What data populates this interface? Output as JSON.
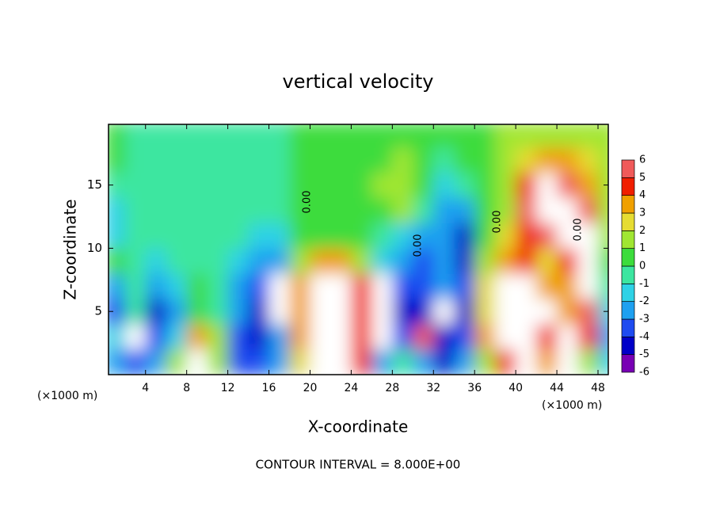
{
  "chart_data": {
    "type": "heatmap",
    "title": "vertical velocity",
    "x_label": "X-coordinate",
    "y_label": "Z-coordinate",
    "x_unit": "(×1000 m)",
    "footer": "CONTOUR INTERVAL = 8.000E+00",
    "contour_labels": [
      "0.00",
      "0.00",
      "0.00",
      "0.00"
    ],
    "x": [
      1,
      3,
      5,
      7,
      9,
      11,
      13,
      15,
      17,
      19,
      21,
      23,
      25,
      27,
      29,
      31,
      33,
      35,
      37,
      39,
      41,
      43,
      45,
      47,
      49
    ],
    "y": [
      1,
      3,
      5,
      7,
      9,
      11,
      13,
      15,
      17,
      19
    ],
    "values": [
      [
        -3,
        -4,
        -3,
        1,
        8,
        1,
        -4,
        -4,
        -3,
        2,
        8,
        9,
        4,
        -3,
        -1,
        -3,
        -5,
        -3,
        1,
        4,
        7,
        3,
        8,
        1,
        -2
      ],
      [
        -2,
        8,
        -4,
        -2,
        3,
        1,
        -4,
        -5,
        -3,
        3,
        9,
        9,
        4,
        8,
        -4,
        5,
        -5,
        -4,
        3,
        8,
        9,
        4,
        8,
        4,
        -3
      ],
      [
        -4,
        -1,
        -5,
        -3,
        0,
        -1,
        -3,
        -5,
        8,
        3,
        9,
        10,
        4,
        9,
        -5,
        -5,
        8,
        -5,
        2,
        8,
        8,
        6,
        3,
        5,
        -2
      ],
      [
        -3,
        -1,
        -3,
        -2,
        0,
        -1,
        -3,
        -4,
        6,
        3,
        8,
        9,
        4,
        7,
        -4,
        -4,
        -3,
        -4,
        2,
        6,
        7,
        3,
        3,
        8,
        -1
      ],
      [
        0,
        -1,
        -2,
        -1,
        -1,
        -1,
        -2,
        -3,
        -3,
        1,
        3,
        3,
        1,
        -2,
        -3,
        -4,
        -3,
        -5,
        1,
        3,
        4,
        2,
        4,
        8,
        0
      ],
      [
        -2,
        -1,
        -1,
        -1,
        -1,
        -1,
        -1,
        -2,
        -2,
        0,
        0,
        0,
        0,
        -1,
        -2,
        -3,
        -3,
        -5,
        0,
        2,
        4,
        5,
        9,
        8,
        1
      ],
      [
        -2,
        -1,
        -1,
        -1,
        -1,
        -1,
        -1,
        -1,
        -1,
        0,
        0,
        0,
        0,
        0,
        1,
        -1,
        -3,
        -3,
        0,
        1,
        5,
        8,
        9,
        5,
        1
      ],
      [
        -1,
        -1,
        -1,
        -1,
        -1,
        -1,
        -1,
        -1,
        -1,
        0,
        0,
        0,
        0,
        1,
        1,
        0,
        -2,
        -1,
        0,
        1,
        4,
        6,
        5,
        3,
        1
      ],
      [
        0,
        -1,
        -1,
        -1,
        -1,
        -1,
        -1,
        -1,
        -1,
        0,
        0,
        0,
        0,
        0,
        1,
        0,
        -1,
        0,
        0,
        1,
        2,
        3,
        3,
        2,
        1
      ],
      [
        0,
        -1,
        -1,
        -1,
        -1,
        -1,
        -1,
        -1,
        -1,
        0,
        0,
        0,
        0,
        0,
        0,
        0,
        0,
        0,
        0,
        1,
        1,
        1,
        1,
        1,
        1
      ]
    ],
    "xlim": [
      0.4,
      49
    ],
    "ylim": [
      0,
      19.8
    ],
    "xticks": [
      4,
      8,
      12,
      16,
      20,
      24,
      28,
      32,
      36,
      40,
      44,
      48
    ],
    "yticks": [
      5,
      10,
      15
    ],
    "colorbar_levels": [
      -6,
      -5,
      -4,
      -3,
      -2,
      -1,
      0,
      1,
      2,
      3,
      4,
      5,
      6
    ],
    "colors": [
      "#7800b4",
      "#0000c8",
      "#1e4bf0",
      "#1ea0f0",
      "#2ed2e6",
      "#3ce6a0",
      "#3cdc3c",
      "#a0e632",
      "#e6dc32",
      "#f0a000",
      "#f01e00",
      "#f05a5a"
    ],
    "over_color": "#ffffff"
  }
}
